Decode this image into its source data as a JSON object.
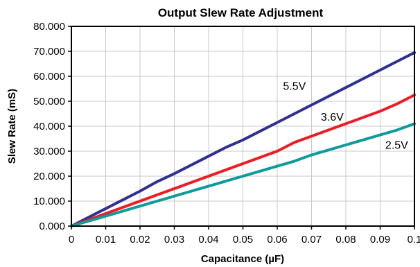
{
  "chart_data": {
    "type": "line",
    "title": "Output Slew Rate Adjustment",
    "xlabel": "Capacitance (µF)",
    "ylabel": "Slew Rate (mS)",
    "xlim": [
      0,
      0.1
    ],
    "ylim": [
      0,
      80
    ],
    "grid": true,
    "x_ticks": [
      0,
      0.01,
      0.02,
      0.03,
      0.04,
      0.05,
      0.06,
      0.07,
      0.08,
      0.09,
      0.1
    ],
    "x_tick_labels": [
      "0",
      "0.01",
      "0.02",
      "0.03",
      "0.04",
      "0.05",
      "0.06",
      "0.07",
      "0.08",
      "0.09",
      "0.1"
    ],
    "y_ticks": [
      0,
      10,
      20,
      30,
      40,
      50,
      60,
      70,
      80
    ],
    "y_tick_labels": [
      "0.000",
      "10.000",
      "20.000",
      "30.000",
      "40.000",
      "50.000",
      "60.000",
      "70.000",
      "80.000"
    ],
    "series": [
      {
        "name": "5.5V",
        "color": "#2e3192",
        "x": [
          0,
          0.005,
          0.01,
          0.015,
          0.02,
          0.025,
          0.03,
          0.035,
          0.04,
          0.045,
          0.05,
          0.055,
          0.06,
          0.065,
          0.07,
          0.075,
          0.08,
          0.085,
          0.09,
          0.095,
          0.1
        ],
        "values": [
          0,
          3.5,
          7,
          10.5,
          14,
          17.8,
          21,
          24.5,
          28,
          31.5,
          34.5,
          38,
          41.5,
          45,
          48.5,
          52,
          55.5,
          59,
          62.5,
          66,
          69.5
        ]
      },
      {
        "name": "3.6V",
        "color": "#ed1c24",
        "x": [
          0,
          0.005,
          0.01,
          0.015,
          0.02,
          0.025,
          0.03,
          0.035,
          0.04,
          0.045,
          0.05,
          0.055,
          0.06,
          0.065,
          0.07,
          0.075,
          0.08,
          0.085,
          0.09,
          0.095,
          0.1
        ],
        "values": [
          0,
          2.5,
          5,
          7.5,
          10,
          12.5,
          15,
          17.5,
          20,
          22.5,
          25,
          27.5,
          30,
          33.5,
          36,
          38.5,
          41,
          43.5,
          46,
          49,
          52.5
        ]
      },
      {
        "name": "2.5V",
        "color": "#0f9b9b",
        "x": [
          0,
          0.005,
          0.01,
          0.015,
          0.02,
          0.025,
          0.03,
          0.035,
          0.04,
          0.045,
          0.05,
          0.055,
          0.06,
          0.065,
          0.07,
          0.075,
          0.08,
          0.085,
          0.09,
          0.095,
          0.1
        ],
        "values": [
          0,
          2,
          4,
          6,
          8,
          10,
          12,
          14,
          16,
          18,
          20,
          22,
          24,
          26,
          28.5,
          30.5,
          32.5,
          34.5,
          36.5,
          38.5,
          41
        ]
      }
    ]
  }
}
